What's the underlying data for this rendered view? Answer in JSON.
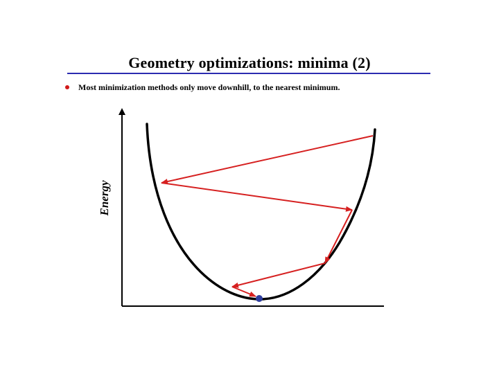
{
  "slide": {
    "title": "Geometry optimizations: minima (2)",
    "bullet": "Most minimization methods only move downhill, to the nearest minimum."
  },
  "diagram": {
    "y_axis_label": "Energy",
    "colors": {
      "rule": "#2b2bb0",
      "bullet": "#d11a1a",
      "curve": "#000000",
      "axes": "#000000",
      "arrows": "#d62020",
      "minimum_point": "#2e3d9e"
    },
    "icons": {
      "bullet": "red-bullet-dot",
      "minimum": "blue-dot-marker"
    }
  }
}
